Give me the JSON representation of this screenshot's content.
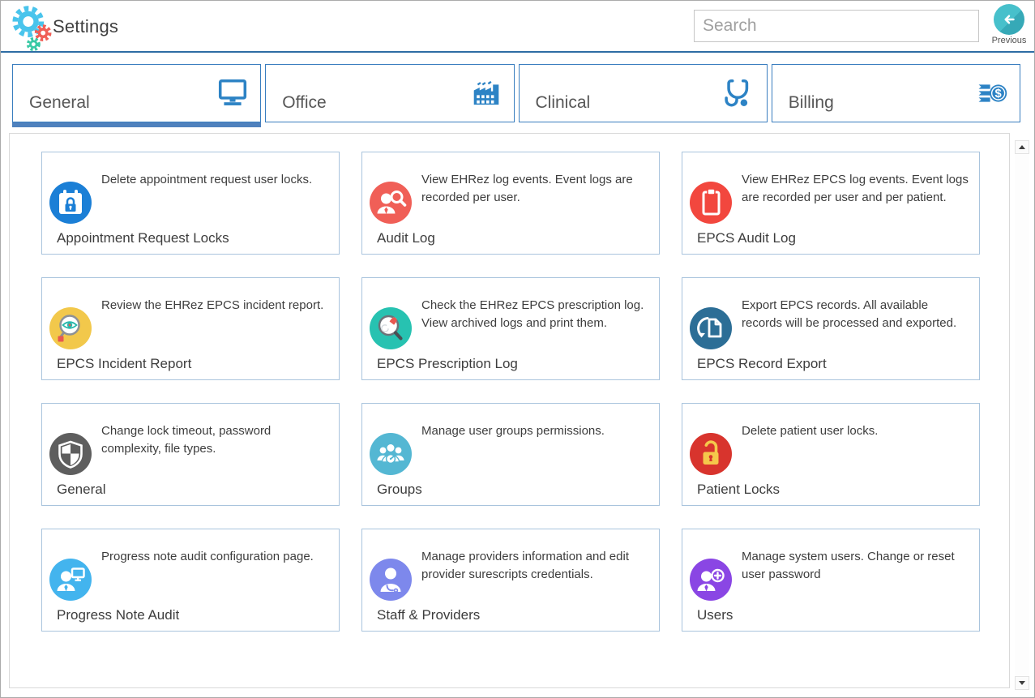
{
  "header": {
    "app_title": "Settings",
    "search": {
      "placeholder": "Search",
      "value": ""
    },
    "previous": {
      "label": "Previous"
    }
  },
  "tabs": [
    {
      "label": "General",
      "icon": "monitor-icon",
      "active": true
    },
    {
      "label": "Office",
      "icon": "factory-icon",
      "active": false
    },
    {
      "label": "Clinical",
      "icon": "stethoscope-icon",
      "active": false
    },
    {
      "label": "Billing",
      "icon": "billing-icon",
      "active": false
    }
  ],
  "cards": [
    {
      "title": "Appointment Request Locks",
      "description": "Delete appointment request user locks.",
      "icon": "calendar-lock-icon",
      "color": "#1b7fd6"
    },
    {
      "title": "Audit Log",
      "description": "View EHRez log events. Event logs are recorded per user.",
      "icon": "user-magnifier-icon",
      "color": "#f05f57"
    },
    {
      "title": "EPCS Audit Log",
      "description": "View EHRez EPCS log events. Event logs are recorded per user and per patient.",
      "icon": "clipboard-icon",
      "color": "#f2473e"
    },
    {
      "title": "EPCS Incident Report",
      "description": "Review the EHRez EPCS incident report.",
      "icon": "magnifier-eye-icon",
      "color": "#f2c84b"
    },
    {
      "title": "EPCS Prescription Log",
      "description": "Check the EHRez EPCS prescription log. View archived logs and print them.",
      "icon": "magnifier-pills-icon",
      "color": "#27c2b1"
    },
    {
      "title": "EPCS Record Export",
      "description": "Export EPCS records. All available records will be processed and exported.",
      "icon": "document-export-icon",
      "color": "#2c6e96"
    },
    {
      "title": "General",
      "description": "Change lock timeout, password complexity, file types.",
      "icon": "shield-icon",
      "color": "#5e5e5e"
    },
    {
      "title": "Groups",
      "description": "Manage user groups permissions.",
      "icon": "user-group-icon",
      "color": "#54b7d3"
    },
    {
      "title": "Patient Locks",
      "description": "Delete patient user locks.",
      "icon": "padlock-icon",
      "color": "#d8342d"
    },
    {
      "title": "Progress Note Audit",
      "description": "Progress note audit configuration page.",
      "icon": "user-monitor-icon",
      "color": "#43b4ee"
    },
    {
      "title": "Staff & Providers",
      "description": "Manage providers information and edit provider surescripts credentials.",
      "icon": "doctor-icon",
      "color": "#7d88ec"
    },
    {
      "title": "Users",
      "description": "Manage system users. Change or reset user password",
      "icon": "user-plus-icon",
      "color": "#8a46e4"
    }
  ],
  "colors": {
    "accent_blue": "#2d83c5",
    "tab_border": "#3a7ebf",
    "active_tab_underline": "#4f81bd",
    "header_divider": "#2e6da4",
    "card_border": "#a9c4dd",
    "previous_button": "#3fb9c9",
    "gear_blue": "#49c4ec",
    "gear_red": "#f05f57",
    "gear_green": "#38c9a5"
  }
}
